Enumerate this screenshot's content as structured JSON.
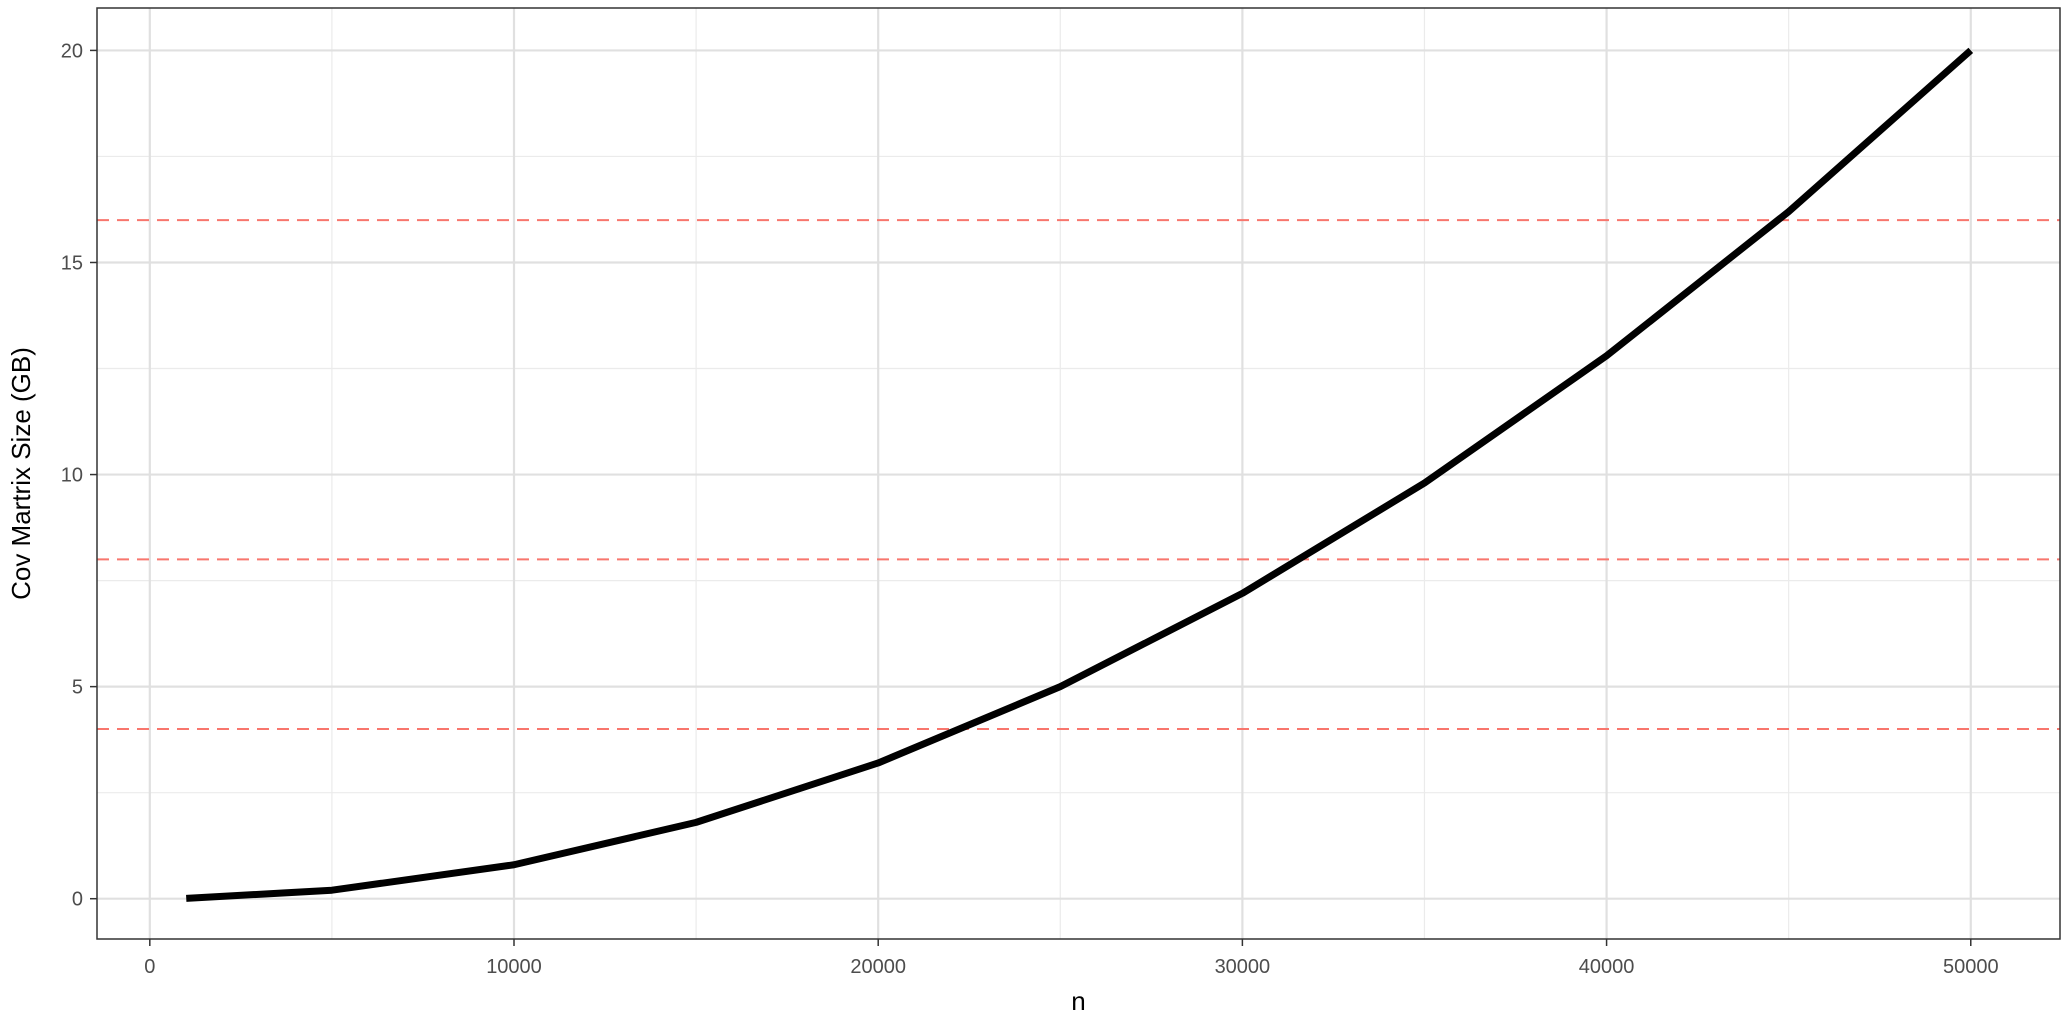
{
  "chart_data": {
    "type": "line",
    "title": "",
    "xlabel": "n",
    "ylabel": "Cov Martrix Size (GB)",
    "xlim": [
      -1450,
      52450
    ],
    "ylim": [
      -0.95,
      21.0
    ],
    "x_ticks": [
      0,
      10000,
      20000,
      30000,
      40000,
      50000
    ],
    "x_tick_labels": [
      "0",
      "10000",
      "20000",
      "30000",
      "40000",
      "50000"
    ],
    "x_minor_ticks": [
      5000,
      15000,
      25000,
      35000,
      45000
    ],
    "y_ticks": [
      0,
      5,
      10,
      15,
      20
    ],
    "y_tick_labels": [
      "0",
      "5",
      "10",
      "15",
      "20"
    ],
    "y_minor_ticks": [
      2.5,
      7.5,
      12.5,
      17.5
    ],
    "grid": true,
    "legend": "none",
    "series": [
      {
        "x": [
          1000,
          5000,
          10000,
          15000,
          20000,
          25000,
          30000,
          35000,
          40000,
          45000,
          50000
        ],
        "values": [
          0.008,
          0.2,
          0.8,
          1.8,
          3.2,
          5.0,
          7.2,
          9.8,
          12.8,
          16.2,
          20.0
        ],
        "color": "#000000"
      }
    ],
    "reference_lines": [
      {
        "y": 4,
        "color": "#f8766d",
        "style": "dashed"
      },
      {
        "y": 8,
        "color": "#f8766d",
        "style": "dashed"
      },
      {
        "y": 16,
        "color": "#f8766d",
        "style": "dashed"
      }
    ]
  }
}
